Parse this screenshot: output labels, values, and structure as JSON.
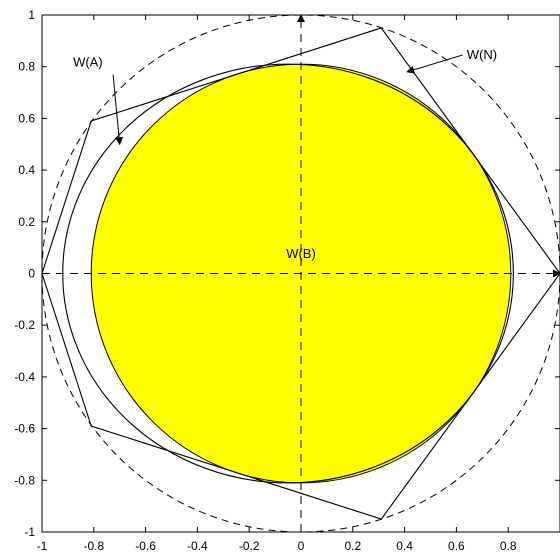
{
  "chart_data": {
    "type": "scatter",
    "title": "",
    "xlabel": "",
    "ylabel": "",
    "xlim": [
      -1,
      1
    ],
    "ylim": [
      -1,
      1
    ],
    "grid": false,
    "x_ticks": [
      -1,
      -0.8,
      -0.6,
      -0.4,
      -0.2,
      0,
      0.2,
      0.4,
      0.6,
      0.8
    ],
    "y_ticks": [
      -1,
      -0.8,
      -0.6,
      -0.4,
      -0.2,
      0,
      0.2,
      0.4,
      0.6,
      0.8,
      1
    ],
    "x_tick_labels": [
      "-1",
      "-0.8",
      "-0.6",
      "-0.4",
      "-0.2",
      "0",
      "0.2",
      "0.4",
      "0.6",
      "0.8"
    ],
    "y_tick_labels": [
      "-1",
      "-0.8",
      "-0.6",
      "-0.4",
      "-0.2",
      "0",
      "0.2",
      "0.4",
      "0.6",
      "0.8",
      "1"
    ],
    "shapes": {
      "unit_circle": {
        "cx": 0,
        "cy": 0,
        "r": 1,
        "style": "dashed"
      },
      "filled_disk_WB": {
        "cx": 0,
        "cy": 0,
        "r": 0.81,
        "fill": "#ffff00"
      },
      "polygon_WN": [
        [
          0.31,
          0.95
        ],
        [
          1.0,
          0.0
        ],
        [
          0.31,
          -0.95
        ],
        [
          -0.81,
          -0.59
        ],
        [
          -1.0,
          0.0
        ],
        [
          -0.81,
          0.59
        ]
      ],
      "curve_WA": {
        "x_min": -0.92,
        "x_max": 0.82,
        "ry": 0.81
      }
    },
    "annotations": {
      "wa": {
        "text": "W(A)",
        "x": -0.88,
        "y": 0.8,
        "arrow_to": [
          -0.7,
          0.5
        ]
      },
      "wn": {
        "text": "W(N)",
        "x": 0.64,
        "y": 0.83,
        "arrow_to": [
          0.41,
          0.78
        ]
      },
      "wb": {
        "text": "W(B)",
        "x": 0.0,
        "y": 0.06
      }
    }
  },
  "colors": {
    "fill": "#ffff00",
    "line": "#000000",
    "background": "#ffffff"
  }
}
